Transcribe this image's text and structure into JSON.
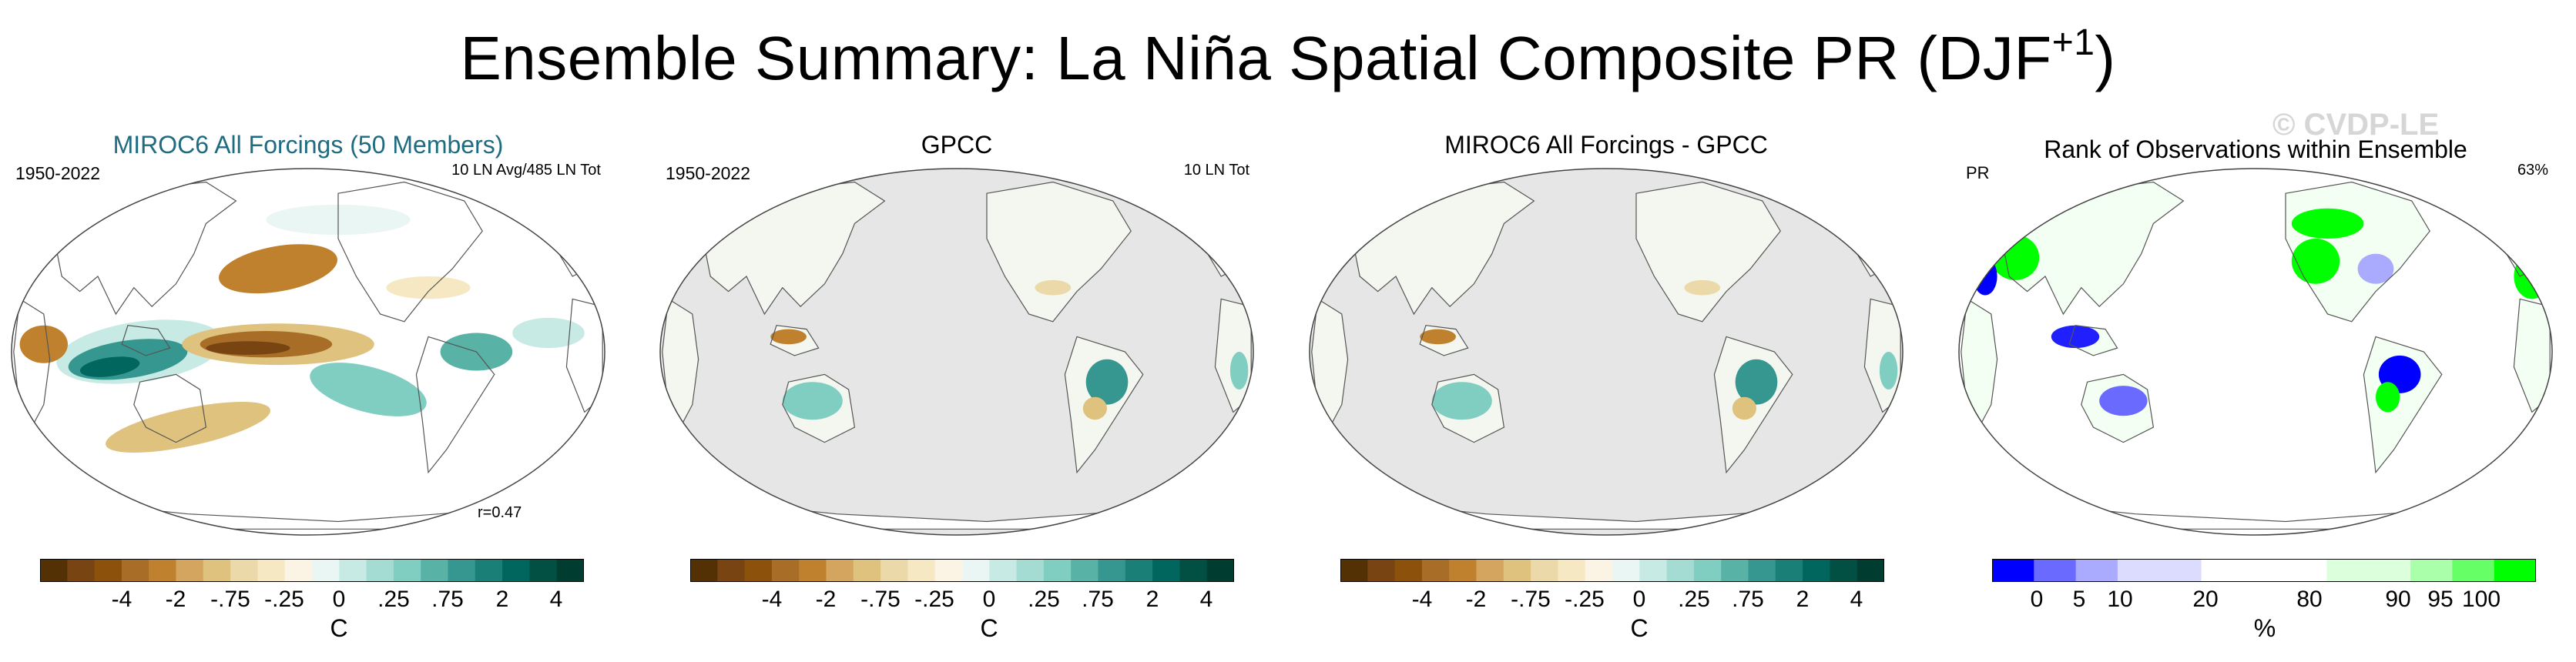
{
  "title": {
    "main": "Ensemble Summary: La Niña Spatial Composite PR (DJF",
    "superscript": "+1",
    "close": ")"
  },
  "watermark": "© CVDP-LE",
  "panels": [
    {
      "title": "MIROC6 All Forcings (50 Members)",
      "title_color": "#1f6b80",
      "left_label": "1950-2022",
      "right_label": "10 LN Avg/485 LN Tot",
      "corr_label": "r=0.47",
      "coverage": "global"
    },
    {
      "title": "GPCC",
      "title_color": "#000000",
      "left_label": "1950-2022",
      "right_label": "10 LN Tot",
      "coverage": "land"
    },
    {
      "title": "MIROC6 All Forcings - GPCC",
      "title_color": "#000000",
      "coverage": "land"
    },
    {
      "title": "Rank of Observations within Ensemble",
      "title_color": "#000000",
      "left_label": "PR",
      "right_label": "63%",
      "coverage": "land-rank"
    }
  ],
  "colorbars": {
    "diverging": {
      "colors": [
        "#543005",
        "#774412",
        "#8c510a",
        "#a86e27",
        "#bf812d",
        "#d4a55e",
        "#dfc27d",
        "#ecd9a9",
        "#f6e8c3",
        "#fbf3e3",
        "#eaf6f4",
        "#c7eae5",
        "#a4dbd3",
        "#80cdc1",
        "#59b2a6",
        "#35978f",
        "#1a7f76",
        "#01665e",
        "#024f44",
        "#003c30"
      ],
      "tick_labels": [
        "-4",
        "-2",
        "-.75",
        "-.25",
        "0",
        ".25",
        ".75",
        "2",
        "4"
      ],
      "unit": "C"
    },
    "rank": {
      "colors": [
        "#0000ff",
        "#6a6aff",
        "#aaaaff",
        "#dcdcff",
        "#dcdcff",
        "#ffffff",
        "#ffffff",
        "#ffffff",
        "#dcffdc",
        "#dcffdc",
        "#aaffaa",
        "#66ff66",
        "#00ff00"
      ],
      "tick_labels": [
        "0",
        "5",
        "10",
        "20",
        "80",
        "90",
        "95",
        "100"
      ],
      "unit": "%"
    }
  },
  "chart_data": [
    {
      "type": "heatmap",
      "title": "MIROC6 All Forcings (50 Members)",
      "variable": "PR composite",
      "units": "C",
      "period": "1950-2022",
      "pattern_correlation": 0.47,
      "levels": [
        -4,
        -2,
        -0.75,
        -0.25,
        0,
        0.25,
        0.75,
        2,
        4
      ]
    },
    {
      "type": "heatmap",
      "title": "GPCC",
      "variable": "PR composite",
      "units": "C",
      "period": "1950-2022",
      "levels": [
        -4,
        -2,
        -0.75,
        -0.25,
        0,
        0.25,
        0.75,
        2,
        4
      ]
    },
    {
      "type": "heatmap",
      "title": "MIROC6 All Forcings - GPCC",
      "variable": "PR difference",
      "units": "C",
      "levels": [
        -4,
        -2,
        -0.75,
        -0.25,
        0,
        0.25,
        0.75,
        2,
        4
      ]
    },
    {
      "type": "heatmap",
      "title": "Rank of Observations within Ensemble",
      "variable": "PR",
      "units": "%",
      "summary_value": "63%",
      "levels": [
        0,
        5,
        10,
        20,
        80,
        90,
        95,
        100
      ]
    }
  ]
}
